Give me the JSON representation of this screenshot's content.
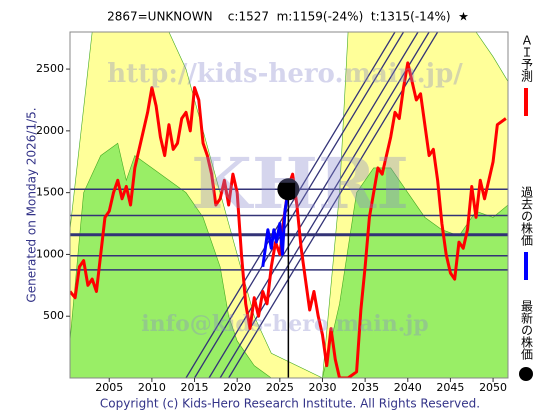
{
  "chart_data": {
    "type": "line",
    "title": "2867=UNKNOWN    c:1527  m:1159(-24%)  t:1315(-14%)  ★",
    "side_note": "Generated on Monday 2026/1/5.",
    "footer": "Copyright (c) Kids-Hero Research Institute. All Rights Reserved.",
    "watermarks": [
      "http://kids-hero.main.jp/",
      "KHRI",
      "info@kids-hero.main.jp"
    ],
    "xlim": [
      2000.4,
      2051.75
    ],
    "ylim": [
      0,
      2800
    ],
    "xticks": [
      2005,
      2010,
      2015,
      2020,
      2025,
      2030,
      2035,
      2040,
      2045,
      2050
    ],
    "yticks": [
      500,
      1000,
      1500,
      2000,
      2500
    ],
    "bands": [
      {
        "color": "#ffff99",
        "x": [
          2000.4,
          2003,
          2012,
          2014,
          2016,
          2018,
          2020,
          2022,
          2024,
          2030,
          2032,
          2033,
          2048,
          2050,
          2051.75
        ],
        "values": [
          1200,
          2800,
          2800,
          2500,
          2000,
          1500,
          1000,
          500,
          200,
          0,
          1500,
          2800,
          2800,
          2600,
          2400
        ]
      },
      {
        "color": "#99ee66",
        "x": [
          2000.4,
          2002,
          2004,
          2006,
          2007,
          2008,
          2010,
          2012,
          2014,
          2016,
          2018,
          2019,
          2020,
          2022,
          2024,
          2030,
          2032,
          2034,
          2036,
          2038,
          2040,
          2042,
          2044,
          2046,
          2048,
          2050,
          2051.75
        ],
        "values": [
          300,
          1500,
          1800,
          1900,
          1600,
          1800,
          1700,
          1600,
          1500,
          1300,
          900,
          500,
          300,
          100,
          0,
          0,
          600,
          1500,
          1700,
          1700,
          1500,
          1300,
          1200,
          1150,
          1350,
          1300,
          1400
        ]
      }
    ],
    "levels": [
      1527,
      1315,
      1159,
      989,
      875
    ],
    "level_color": "#333377",
    "trend_lines": [
      {
        "x": [
          2014,
          2038.5
        ],
        "values": [
          0,
          2800
        ]
      },
      {
        "x": [
          2015,
          2039.5
        ],
        "values": [
          0,
          2800
        ]
      },
      {
        "x": [
          2016.7,
          2041.2
        ],
        "values": [
          0,
          2800
        ]
      },
      {
        "x": [
          2018,
          2042.5
        ],
        "values": [
          0,
          2800
        ]
      },
      {
        "x": [
          2019,
          2043.5
        ],
        "values": [
          0,
          2800
        ]
      }
    ],
    "series": [
      {
        "name": "ＡＩ予測",
        "color": "#ff0000",
        "x": [
          2000.4,
          2001,
          2001.5,
          2002,
          2002.5,
          2003,
          2003.5,
          2004,
          2004.5,
          2005,
          2005.5,
          2006,
          2006.5,
          2007,
          2007.5,
          2008,
          2008.5,
          2009,
          2009.5,
          2010,
          2010.5,
          2011,
          2011.5,
          2012,
          2012.5,
          2013,
          2013.5,
          2014,
          2014.5,
          2015,
          2015.5,
          2016,
          2016.5,
          2017,
          2017.5,
          2018,
          2018.5,
          2019,
          2019.5,
          2020,
          2020.5,
          2021,
          2021.5,
          2022,
          2022.5,
          2023,
          2023.5,
          2024,
          2024.5,
          2025,
          2025.5,
          2026,
          2026.5,
          2027,
          2027.5,
          2028,
          2028.5,
          2029,
          2029.5,
          2030,
          2030.5,
          2031,
          2031.5,
          2032,
          2033,
          2034,
          2034.5,
          2035,
          2035.5,
          2036,
          2036.5,
          2037,
          2037.5,
          2038,
          2038.5,
          2039,
          2039.5,
          2040,
          2040.5,
          2041,
          2041.5,
          2042,
          2042.5,
          2043,
          2043.5,
          2044,
          2044.5,
          2045,
          2045.5,
          2046,
          2046.5,
          2047,
          2047.5,
          2048,
          2048.5,
          2049,
          2049.5,
          2050,
          2050.5,
          2051.5
        ],
        "values": [
          700,
          650,
          900,
          950,
          750,
          800,
          700,
          1000,
          1300,
          1350,
          1500,
          1600,
          1450,
          1550,
          1400,
          1700,
          1850,
          2000,
          2150,
          2350,
          2200,
          1950,
          1800,
          2050,
          1850,
          1900,
          2100,
          2150,
          2000,
          2350,
          2250,
          1900,
          1800,
          1650,
          1400,
          1450,
          1600,
          1400,
          1650,
          1500,
          1000,
          600,
          400,
          650,
          500,
          700,
          600,
          900,
          1100,
          1000,
          1300,
          1550,
          1650,
          1400,
          1050,
          800,
          550,
          700,
          500,
          350,
          100,
          400,
          150,
          0,
          0,
          50,
          550,
          900,
          1300,
          1500,
          1700,
          1650,
          1800,
          1950,
          2150,
          2100,
          2350,
          2550,
          2400,
          2250,
          2300,
          2050,
          1800,
          1850,
          1600,
          1250,
          1000,
          850,
          800,
          1100,
          1050,
          1200,
          1550,
          1300,
          1600,
          1450,
          1600,
          1750,
          2050,
          2100
        ]
      },
      {
        "name": "過去の株価",
        "color": "#0000ff",
        "x": [
          2023,
          2023.3,
          2023.6,
          2024,
          2024.3,
          2024.6,
          2025,
          2025.3,
          2025.6,
          2026
        ],
        "values": [
          900,
          1050,
          1200,
          1050,
          1200,
          1100,
          1250,
          1000,
          1350,
          1527
        ]
      },
      {
        "name": "最新の株価",
        "color": "#000000",
        "x": [
          2026
        ],
        "values": [
          1527
        ]
      }
    ]
  }
}
